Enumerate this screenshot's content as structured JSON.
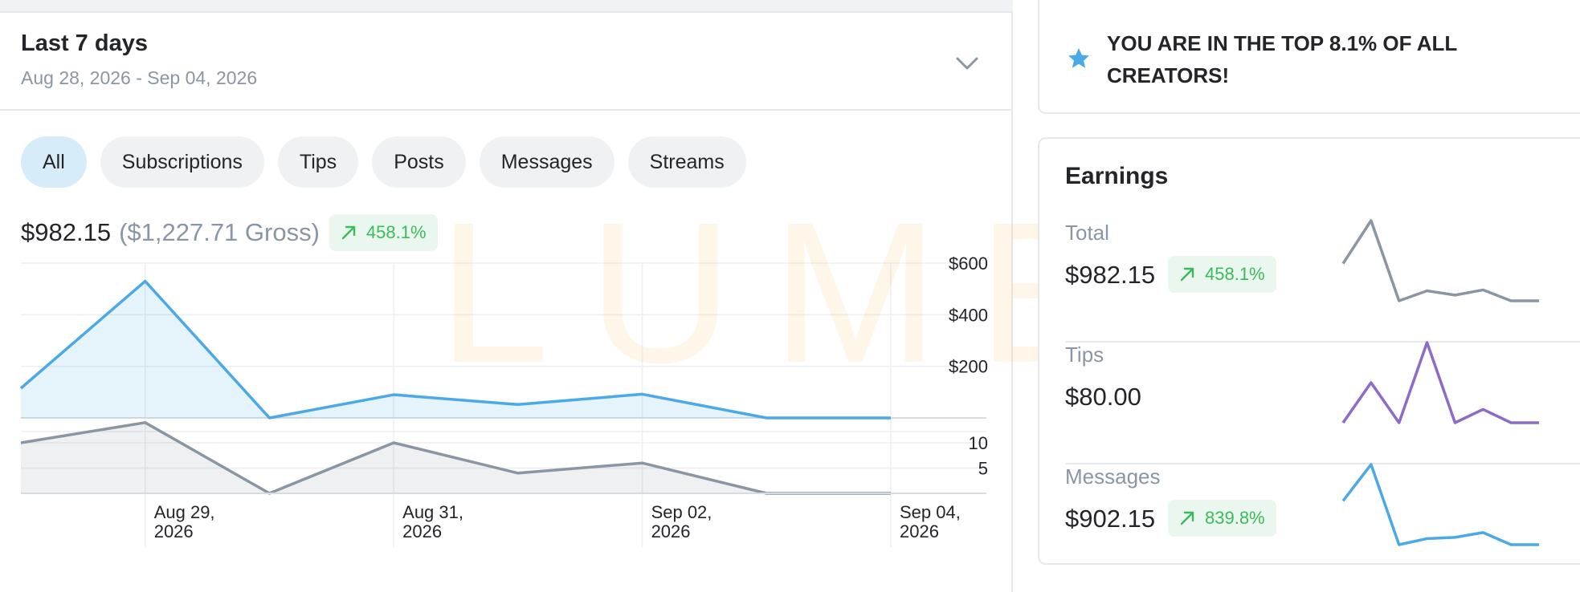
{
  "period": {
    "title": "Last 7 days",
    "range": "Aug 28, 2026 - Sep 04, 2026"
  },
  "filters": [
    "All",
    "Subscriptions",
    "Tips",
    "Posts",
    "Messages",
    "Streams"
  ],
  "active_filter": "All",
  "summary": {
    "net": "$982.15",
    "gross": "($1,227.71 Gross)",
    "change": "458.1%"
  },
  "watermark": "LUMEN",
  "promo": {
    "text": "YOU ARE IN THE TOP 8.1% OF ALL CREATORS!"
  },
  "earnings": {
    "title": "Earnings",
    "rows": [
      {
        "label": "Total",
        "value": "$982.15",
        "change": "458.1%"
      },
      {
        "label": "Tips",
        "value": "$80.00"
      },
      {
        "label": "Messages",
        "value": "$902.15",
        "change": "839.8%"
      }
    ]
  },
  "colors": {
    "accent": "#4aa9e6",
    "positive": "#3dbb5a",
    "positive_bg": "#eaf7ee",
    "muted": "#8a96a3",
    "tips_line": "#8e6bc6",
    "count_line": "#8a96a3"
  },
  "chart_data": {
    "type": "area",
    "x": [
      "Aug 28, 2026",
      "Aug 29, 2026",
      "Aug 30, 2026",
      "Aug 31, 2026",
      "Sep 01, 2026",
      "Sep 02, 2026",
      "Sep 03, 2026",
      "Sep 04, 2026"
    ],
    "x_tick_labels": [
      {
        "x": "Aug 29, 2026",
        "label": [
          "Aug 29,",
          "2026"
        ]
      },
      {
        "x": "Aug 31, 2026",
        "label": [
          "Aug 31,",
          "2026"
        ]
      },
      {
        "x": "Sep 02, 2026",
        "label": [
          "Sep 02,",
          "2026"
        ]
      },
      {
        "x": "Sep 04, 2026",
        "label": [
          "Sep 04,",
          "2026"
        ]
      }
    ],
    "series": [
      {
        "values": [
          115,
          530,
          0,
          90,
          52,
          92,
          0,
          0
        ]
      },
      {
        "values": [
          10,
          14,
          0,
          10,
          4,
          6,
          0,
          0
        ]
      }
    ],
    "earnings_axis": {
      "ylim": [
        0,
        600
      ],
      "ticks": [
        200,
        400,
        600
      ],
      "tick_labels": [
        "$200",
        "$400",
        "$600"
      ]
    },
    "count_axis": {
      "ylim": [
        0,
        10
      ],
      "ticks": [
        5,
        10
      ],
      "tick_labels": [
        "5",
        "10"
      ]
    },
    "grid": true
  },
  "sparklines": {
    "total": [
      150,
      300,
      20,
      55,
      40,
      58,
      20,
      20
    ],
    "tips": [
      0,
      30,
      0,
      60,
      0,
      10,
      0,
      0
    ],
    "messages": [
      50,
      200,
      -130,
      -105,
      -100,
      -80,
      -130,
      -130
    ]
  }
}
